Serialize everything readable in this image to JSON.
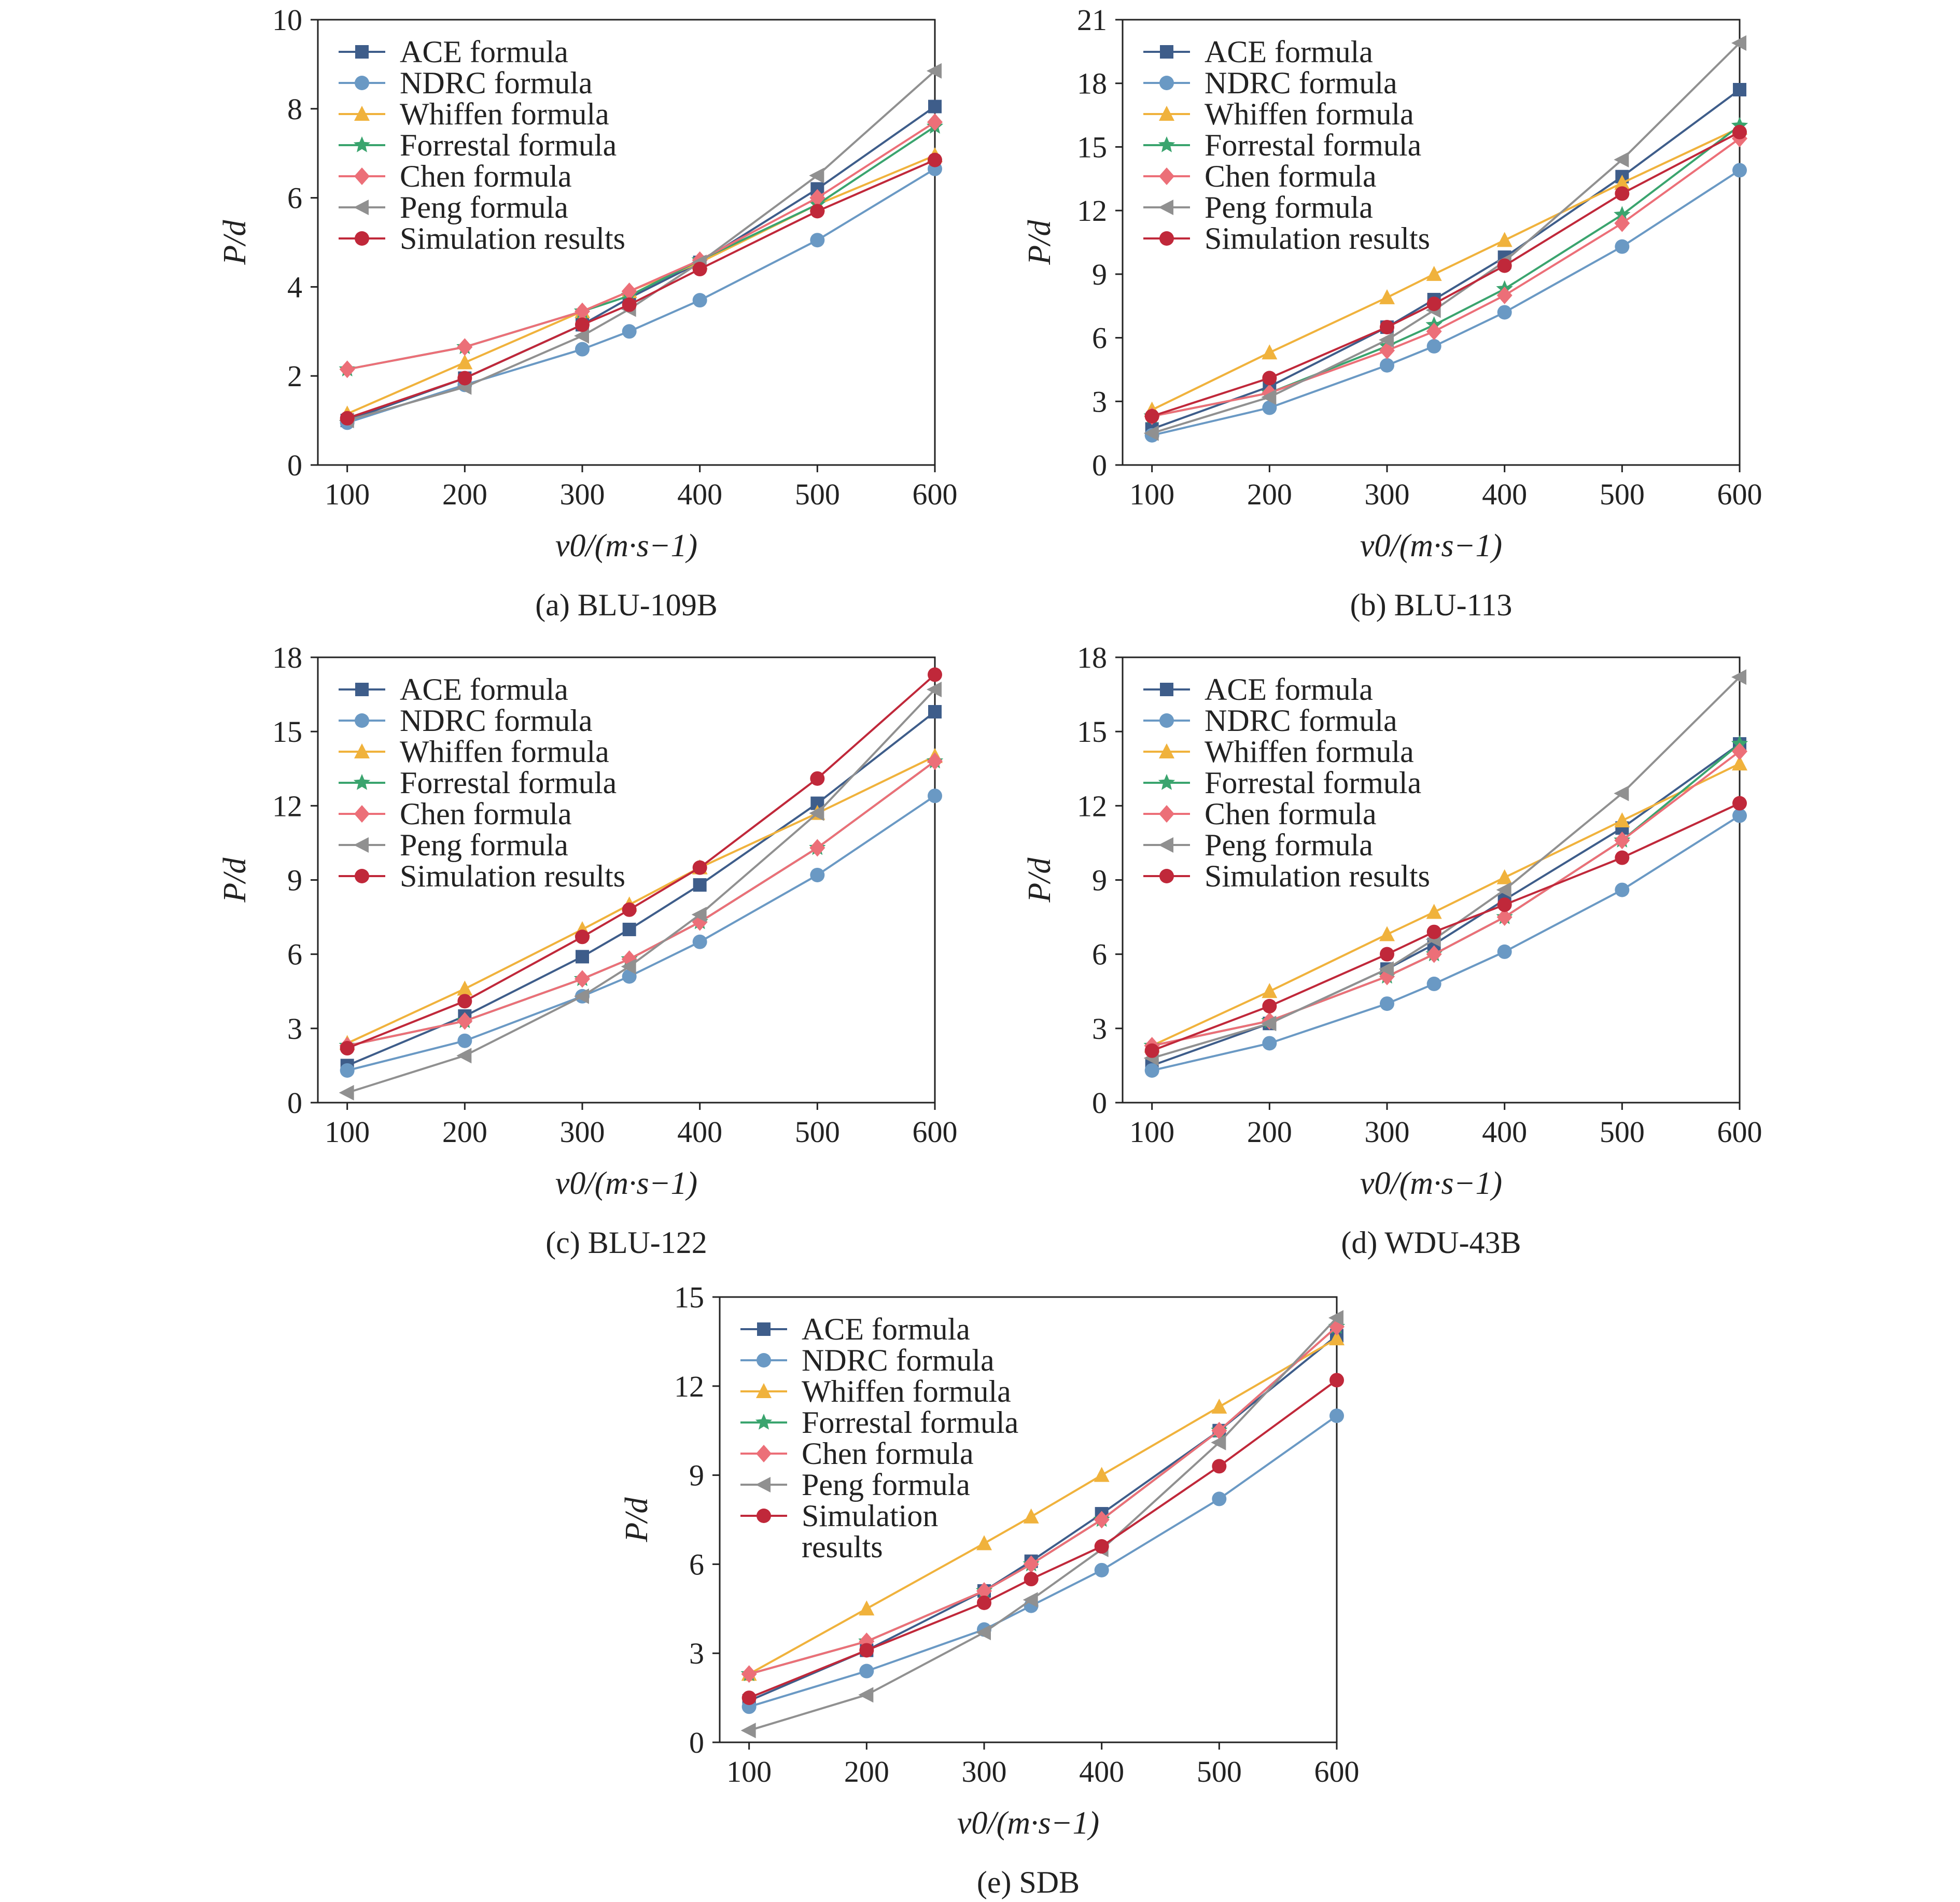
{
  "series_styles": [
    {
      "key": "ace",
      "color": "#3e5d8a",
      "marker": "square"
    },
    {
      "key": "ndrc",
      "color": "#6a99c4",
      "marker": "circle"
    },
    {
      "key": "whiffen",
      "color": "#f0b23c",
      "marker": "triangle-up"
    },
    {
      "key": "forrestal",
      "color": "#3aa46e",
      "marker": "star"
    },
    {
      "key": "chen",
      "color": "#ec6f78",
      "marker": "diamond"
    },
    {
      "key": "peng",
      "color": "#909090",
      "marker": "triangle-left"
    },
    {
      "key": "sim",
      "color": "#c0283a",
      "marker": "circle"
    }
  ],
  "chart_data": [
    {
      "type": "line",
      "caption": "(a) BLU-109B",
      "xlabel": "v0/(m·s−1)",
      "ylabel": "P/d",
      "xlim": [
        75,
        600
      ],
      "ylim": [
        0,
        10
      ],
      "xticks": [
        100,
        200,
        300,
        400,
        500,
        600
      ],
      "yticks": [
        0,
        2,
        4,
        6,
        8,
        10
      ],
      "grid": false,
      "legend_position": "top-left",
      "x": [
        100,
        200,
        300,
        340,
        400,
        500,
        600
      ],
      "series": [
        {
          "name": "ACE formula",
          "values": [
            1.0,
            1.95,
            3.15,
            3.75,
            4.55,
            6.2,
            8.05
          ]
        },
        {
          "name": "NDRC formula",
          "values": [
            0.95,
            1.8,
            2.6,
            3.0,
            3.7,
            5.05,
            6.65
          ]
        },
        {
          "name": "Whiffen formula",
          "values": [
            1.15,
            2.3,
            3.45,
            3.9,
            4.55,
            5.85,
            6.95
          ]
        },
        {
          "name": "Forrestal formula",
          "values": [
            2.15,
            2.65,
            3.45,
            3.8,
            4.6,
            5.85,
            7.6
          ]
        },
        {
          "name": "Chen formula",
          "values": [
            2.15,
            2.65,
            3.45,
            3.9,
            4.6,
            6.0,
            7.7
          ]
        },
        {
          "name": "Peng formula",
          "values": [
            1.0,
            1.75,
            2.9,
            3.5,
            4.55,
            6.5,
            8.85
          ]
        },
        {
          "name": "Simulation results",
          "values": [
            1.05,
            1.95,
            3.15,
            3.6,
            4.4,
            5.7,
            6.85
          ]
        }
      ]
    },
    {
      "type": "line",
      "caption": "(b) BLU-113",
      "xlabel": "v0/(m·s−1)",
      "ylabel": "P/d",
      "xlim": [
        75,
        600
      ],
      "ylim": [
        0,
        21
      ],
      "xticks": [
        100,
        200,
        300,
        400,
        500,
        600
      ],
      "yticks": [
        0,
        3,
        6,
        9,
        12,
        15,
        18,
        21
      ],
      "grid": false,
      "legend_position": "top-left",
      "x": [
        100,
        200,
        300,
        340,
        400,
        500,
        600
      ],
      "series": [
        {
          "name": "ACE formula",
          "values": [
            1.7,
            3.7,
            6.5,
            7.8,
            9.8,
            13.6,
            17.7
          ]
        },
        {
          "name": "NDRC formula",
          "values": [
            1.4,
            2.7,
            4.7,
            5.6,
            7.2,
            10.3,
            13.9
          ]
        },
        {
          "name": "Whiffen formula",
          "values": [
            2.6,
            5.3,
            7.9,
            9.0,
            10.6,
            13.3,
            15.9
          ]
        },
        {
          "name": "Forrestal formula",
          "values": [
            2.3,
            3.4,
            5.6,
            6.6,
            8.3,
            11.8,
            16.0
          ]
        },
        {
          "name": "Chen formula",
          "values": [
            2.3,
            3.4,
            5.4,
            6.3,
            8.0,
            11.4,
            15.4
          ]
        },
        {
          "name": "Peng formula",
          "values": [
            1.5,
            3.2,
            5.9,
            7.3,
            9.6,
            14.4,
            19.9
          ]
        },
        {
          "name": "Simulation results",
          "values": [
            2.3,
            4.1,
            6.5,
            7.6,
            9.4,
            12.8,
            15.7
          ]
        }
      ]
    },
    {
      "type": "line",
      "caption": "(c) BLU-122",
      "xlabel": "v0/(m·s−1)",
      "ylabel": "P/d",
      "xlim": [
        75,
        600
      ],
      "ylim": [
        0,
        18
      ],
      "xticks": [
        100,
        200,
        300,
        400,
        500,
        600
      ],
      "yticks": [
        0,
        3,
        6,
        9,
        12,
        15,
        18
      ],
      "grid": false,
      "legend_position": "top-left",
      "x": [
        100,
        200,
        300,
        340,
        400,
        500,
        600
      ],
      "series": [
        {
          "name": "ACE formula",
          "values": [
            1.5,
            3.5,
            5.9,
            7.0,
            8.8,
            12.1,
            15.8
          ]
        },
        {
          "name": "NDRC formula",
          "values": [
            1.3,
            2.5,
            4.3,
            5.1,
            6.5,
            9.2,
            12.4
          ]
        },
        {
          "name": "Whiffen formula",
          "values": [
            2.4,
            4.6,
            7.0,
            8.0,
            9.5,
            11.7,
            14.0
          ]
        },
        {
          "name": "Forrestal formula",
          "values": [
            2.3,
            3.3,
            5.0,
            5.8,
            7.3,
            10.3,
            13.8
          ]
        },
        {
          "name": "Chen formula",
          "values": [
            2.3,
            3.3,
            5.0,
            5.8,
            7.3,
            10.3,
            13.8
          ]
        },
        {
          "name": "Peng formula",
          "values": [
            0.4,
            1.9,
            4.3,
            5.5,
            7.6,
            11.7,
            16.7
          ]
        },
        {
          "name": "Simulation results",
          "values": [
            2.2,
            4.1,
            6.7,
            7.8,
            9.5,
            13.1,
            17.3
          ]
        }
      ]
    },
    {
      "type": "line",
      "caption": "(d) WDU-43B",
      "xlabel": "v0/(m·s−1)",
      "ylabel": "P/d",
      "xlim": [
        75,
        600
      ],
      "ylim": [
        0,
        18
      ],
      "xticks": [
        100,
        200,
        300,
        400,
        500,
        600
      ],
      "yticks": [
        0,
        3,
        6,
        9,
        12,
        15,
        18
      ],
      "grid": false,
      "legend_position": "top-left",
      "x": [
        100,
        200,
        300,
        340,
        400,
        500,
        600
      ],
      "series": [
        {
          "name": "ACE formula",
          "values": [
            1.5,
            3.2,
            5.4,
            6.4,
            8.2,
            11.1,
            14.5
          ]
        },
        {
          "name": "NDRC formula",
          "values": [
            1.3,
            2.4,
            4.0,
            4.8,
            6.1,
            8.6,
            11.6
          ]
        },
        {
          "name": "Whiffen formula",
          "values": [
            2.3,
            4.5,
            6.8,
            7.7,
            9.1,
            11.4,
            13.7
          ]
        },
        {
          "name": "Forrestal formula",
          "values": [
            2.3,
            3.3,
            5.1,
            6.0,
            7.5,
            10.6,
            14.5
          ]
        },
        {
          "name": "Chen formula",
          "values": [
            2.3,
            3.3,
            5.1,
            6.0,
            7.5,
            10.6,
            14.2
          ]
        },
        {
          "name": "Peng formula",
          "values": [
            1.8,
            3.2,
            5.4,
            6.6,
            8.6,
            12.5,
            17.2
          ]
        },
        {
          "name": "Simulation results",
          "values": [
            2.1,
            3.9,
            6.0,
            6.9,
            8.0,
            9.9,
            12.1
          ]
        }
      ]
    },
    {
      "type": "line",
      "caption": "(e) SDB",
      "xlabel": "v0/(m·s−1)",
      "ylabel": "P/d",
      "xlim": [
        75,
        600
      ],
      "ylim": [
        0,
        15
      ],
      "xticks": [
        100,
        200,
        300,
        400,
        500,
        600
      ],
      "yticks": [
        0,
        3,
        6,
        9,
        12,
        15
      ],
      "grid": false,
      "legend_position": "top-left",
      "x": [
        100,
        200,
        300,
        340,
        400,
        500,
        600
      ],
      "series": [
        {
          "name": "ACE formula",
          "values": [
            1.4,
            3.1,
            5.1,
            6.1,
            7.7,
            10.5,
            13.7
          ]
        },
        {
          "name": "NDRC formula",
          "values": [
            1.2,
            2.4,
            3.8,
            4.6,
            5.8,
            8.2,
            11.0
          ]
        },
        {
          "name": "Whiffen formula",
          "values": [
            2.3,
            4.5,
            6.7,
            7.6,
            9.0,
            11.3,
            13.6
          ]
        },
        {
          "name": "Forrestal formula",
          "values": [
            2.3,
            3.4,
            5.1,
            6.0,
            7.5,
            10.5,
            14.0
          ]
        },
        {
          "name": "Chen formula",
          "values": [
            2.3,
            3.4,
            5.1,
            6.0,
            7.5,
            10.5,
            14.0
          ]
        },
        {
          "name": "Peng formula",
          "values": [
            0.4,
            1.6,
            3.7,
            4.8,
            6.5,
            10.1,
            14.3
          ]
        },
        {
          "name": "Simulation results",
          "values": [
            1.5,
            3.1,
            4.7,
            5.5,
            6.6,
            9.3,
            12.2
          ]
        }
      ]
    }
  ]
}
